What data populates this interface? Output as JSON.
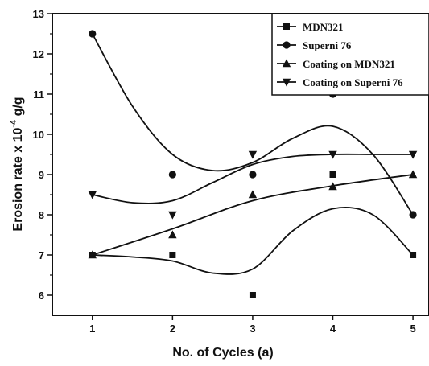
{
  "chart_data": {
    "type": "scatter",
    "xlabel": "No. of Cycles (a)",
    "ylabel_main": "Erosion rate x 10",
    "ylabel_exp": "-4",
    "ylabel_unit": " g/g",
    "xlim": [
      0.5,
      5.2
    ],
    "ylim": [
      5.5,
      13
    ],
    "x_ticks": [
      "1",
      "2",
      "3",
      "4",
      "5"
    ],
    "y_ticks": [
      "6",
      "7",
      "8",
      "9",
      "10",
      "11",
      "12",
      "13"
    ],
    "legend_position": "top-right",
    "grid": false,
    "series": [
      {
        "name": "MDN321",
        "marker": "square",
        "x": [
          1,
          2,
          3,
          4,
          5
        ],
        "y": [
          7,
          7,
          6,
          9,
          7
        ],
        "curve": [
          [
            1,
            7
          ],
          [
            1.5,
            6.95
          ],
          [
            2,
            6.85
          ],
          [
            2.5,
            6.55
          ],
          [
            3,
            6.65
          ],
          [
            3.5,
            7.6
          ],
          [
            4,
            8.15
          ],
          [
            4.5,
            8.0
          ],
          [
            5,
            7.0
          ]
        ]
      },
      {
        "name": "Superni 76",
        "marker": "circle",
        "x": [
          1,
          2,
          3,
          4,
          5
        ],
        "y": [
          12.5,
          9,
          9,
          11,
          8
        ],
        "curve": [
          [
            1,
            12.5
          ],
          [
            1.5,
            10.7
          ],
          [
            2,
            9.5
          ],
          [
            2.5,
            9.1
          ],
          [
            3,
            9.3
          ],
          [
            3.5,
            9.9
          ],
          [
            4,
            10.2
          ],
          [
            4.5,
            9.5
          ],
          [
            5,
            8.0
          ]
        ]
      },
      {
        "name": "Coating on MDN321",
        "marker": "triangle-up",
        "x": [
          1,
          2,
          3,
          4,
          5
        ],
        "y": [
          7,
          7.5,
          8.5,
          8.7,
          9
        ],
        "curve": [
          [
            1,
            7
          ],
          [
            2,
            7.65
          ],
          [
            3,
            8.35
          ],
          [
            4,
            8.72
          ],
          [
            5,
            9.0
          ]
        ]
      },
      {
        "name": "Coating on Superni 76",
        "marker": "triangle-down",
        "x": [
          1,
          2,
          3,
          4,
          5
        ],
        "y": [
          8.5,
          8,
          9.5,
          9.5,
          9.5
        ],
        "curve": [
          [
            1,
            8.5
          ],
          [
            1.5,
            8.3
          ],
          [
            2,
            8.35
          ],
          [
            2.5,
            8.8
          ],
          [
            3,
            9.25
          ],
          [
            3.5,
            9.45
          ],
          [
            4,
            9.5
          ],
          [
            4.5,
            9.5
          ],
          [
            5,
            9.5
          ]
        ]
      }
    ]
  }
}
